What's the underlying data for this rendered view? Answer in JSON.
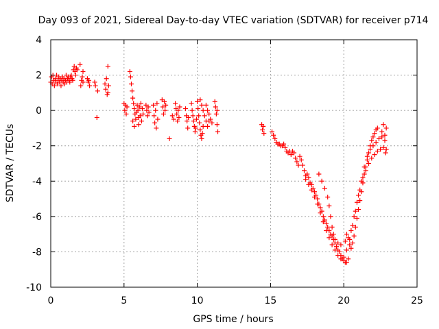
{
  "chart_data": {
    "type": "scatter",
    "title": "Day 093 of 2021, Sidereal Day-to-day VTEC variation (SDTVAR) for receiver p714",
    "xlabel": "GPS time / hours",
    "ylabel": "SDTVAR / TECUs",
    "xlim": [
      0,
      25
    ],
    "ylim": [
      -10,
      4
    ],
    "x_ticks": [
      0,
      5,
      10,
      15,
      20,
      25
    ],
    "y_ticks": [
      4,
      2,
      0,
      -2,
      -4,
      -6,
      -8,
      -10
    ],
    "x_tick_labels": [
      "0",
      "5",
      "10",
      "15",
      "20",
      "25"
    ],
    "y_tick_labels": [
      "4",
      "2",
      "0",
      "-2",
      "-4",
      "-6",
      "-8",
      "-10"
    ],
    "grid": true,
    "marker": "plus",
    "series_color": "#ff0000",
    "series": [
      {
        "name": "SDTVAR",
        "points": [
          [
            0.0,
            1.6
          ],
          [
            0.05,
            1.9
          ],
          [
            0.1,
            1.5
          ],
          [
            0.15,
            2.0
          ],
          [
            0.2,
            1.7
          ],
          [
            0.25,
            1.4
          ],
          [
            0.3,
            1.8
          ],
          [
            0.35,
            1.6
          ],
          [
            0.4,
            2.0
          ],
          [
            0.45,
            1.5
          ],
          [
            0.5,
            1.7
          ],
          [
            0.55,
            1.9
          ],
          [
            0.6,
            1.6
          ],
          [
            0.65,
            1.8
          ],
          [
            0.7,
            1.4
          ],
          [
            0.75,
            1.7
          ],
          [
            0.8,
            1.9
          ],
          [
            0.85,
            1.6
          ],
          [
            0.9,
            1.8
          ],
          [
            0.95,
            1.5
          ],
          [
            1.0,
            1.7
          ],
          [
            1.05,
            2.0
          ],
          [
            1.1,
            1.6
          ],
          [
            1.15,
            1.8
          ],
          [
            1.2,
            1.9
          ],
          [
            1.25,
            1.7
          ],
          [
            1.3,
            1.6
          ],
          [
            1.35,
            1.9
          ],
          [
            1.4,
            2.0
          ],
          [
            1.45,
            1.8
          ],
          [
            1.5,
            1.7
          ],
          [
            1.55,
            2.3
          ],
          [
            1.6,
            2.5
          ],
          [
            1.65,
            2.2
          ],
          [
            1.7,
            2.0
          ],
          [
            1.75,
            2.4
          ],
          [
            1.8,
            2.3
          ],
          [
            2.0,
            2.6
          ],
          [
            2.05,
            1.4
          ],
          [
            2.1,
            1.7
          ],
          [
            2.15,
            1.9
          ],
          [
            2.2,
            2.2
          ],
          [
            2.2,
            1.6
          ],
          [
            2.5,
            1.8
          ],
          [
            2.55,
            1.6
          ],
          [
            2.6,
            1.7
          ],
          [
            2.65,
            1.4
          ],
          [
            3.0,
            1.6
          ],
          [
            3.05,
            1.4
          ],
          [
            3.15,
            -0.4
          ],
          [
            3.2,
            1.1
          ],
          [
            3.7,
            1.5
          ],
          [
            3.75,
            1.2
          ],
          [
            3.8,
            1.8
          ],
          [
            3.85,
            0.9
          ],
          [
            3.9,
            2.5
          ],
          [
            3.9,
            1.0
          ],
          [
            3.95,
            1.4
          ],
          [
            5.0,
            0.4
          ],
          [
            5.05,
            0.0
          ],
          [
            5.1,
            0.3
          ],
          [
            5.15,
            -0.2
          ],
          [
            5.2,
            0.2
          ],
          [
            5.4,
            2.2
          ],
          [
            5.45,
            1.9
          ],
          [
            5.5,
            1.5
          ],
          [
            5.55,
            1.1
          ],
          [
            5.6,
            0.7
          ],
          [
            5.65,
            0.4
          ],
          [
            5.7,
            0.1
          ],
          [
            5.75,
            -0.2
          ],
          [
            5.8,
            -0.5
          ],
          [
            5.85,
            -0.1
          ],
          [
            5.9,
            0.3
          ],
          [
            5.95,
            0.0
          ],
          [
            6.0,
            -0.4
          ],
          [
            6.05,
            0.2
          ],
          [
            6.1,
            -0.3
          ],
          [
            6.15,
            0.4
          ],
          [
            6.2,
            -0.6
          ],
          [
            6.25,
            0.1
          ],
          [
            6.3,
            -0.2
          ],
          [
            5.6,
            -0.6
          ],
          [
            5.7,
            -0.9
          ],
          [
            6.0,
            -0.8
          ],
          [
            6.5,
            0.3
          ],
          [
            6.55,
            0.0
          ],
          [
            6.6,
            -0.3
          ],
          [
            6.65,
            0.2
          ],
          [
            6.7,
            -0.1
          ],
          [
            7.0,
            0.3
          ],
          [
            7.05,
            -0.3
          ],
          [
            7.1,
            -0.7
          ],
          [
            7.15,
            0.0
          ],
          [
            7.2,
            -1.0
          ],
          [
            7.25,
            0.4
          ],
          [
            7.3,
            -0.5
          ],
          [
            7.6,
            0.6
          ],
          [
            7.65,
            0.2
          ],
          [
            7.7,
            -0.2
          ],
          [
            7.75,
            0.5
          ],
          [
            7.8,
            0.0
          ],
          [
            7.85,
            0.3
          ],
          [
            8.1,
            -1.6
          ],
          [
            8.3,
            -0.3
          ],
          [
            8.4,
            -0.5
          ],
          [
            8.5,
            0.4
          ],
          [
            8.55,
            0.1
          ],
          [
            8.6,
            -0.2
          ],
          [
            8.65,
            -0.6
          ],
          [
            8.7,
            0.0
          ],
          [
            8.75,
            -0.4
          ],
          [
            8.8,
            0.2
          ],
          [
            9.2,
            0.1
          ],
          [
            9.25,
            -0.3
          ],
          [
            9.3,
            -0.6
          ],
          [
            9.35,
            -1.0
          ],
          [
            9.4,
            -0.4
          ],
          [
            9.6,
            0.4
          ],
          [
            9.65,
            0.0
          ],
          [
            9.7,
            -0.3
          ],
          [
            9.75,
            -0.6
          ],
          [
            9.8,
            -0.9
          ],
          [
            9.85,
            -1.2
          ],
          [
            9.9,
            -1.0
          ],
          [
            9.95,
            -0.5
          ],
          [
            10.0,
            0.5
          ],
          [
            10.05,
            0.1
          ],
          [
            10.1,
            -0.3
          ],
          [
            10.15,
            -0.7
          ],
          [
            10.2,
            -1.1
          ],
          [
            10.25,
            -1.4
          ],
          [
            10.3,
            -1.6
          ],
          [
            10.35,
            -1.3
          ],
          [
            10.4,
            -0.9
          ],
          [
            10.2,
            0.6
          ],
          [
            10.3,
            0.3
          ],
          [
            10.4,
            0.0
          ],
          [
            10.5,
            -0.3
          ],
          [
            10.6,
            -0.6
          ],
          [
            10.7,
            -0.9
          ],
          [
            10.8,
            -0.6
          ],
          [
            10.6,
            0.3
          ],
          [
            10.7,
            0.0
          ],
          [
            10.8,
            -0.2
          ],
          [
            10.9,
            -0.5
          ],
          [
            11.0,
            -0.7
          ],
          [
            11.2,
            0.5
          ],
          [
            11.25,
            0.2
          ],
          [
            11.3,
            -0.2
          ],
          [
            11.35,
            -0.8
          ],
          [
            11.4,
            -1.2
          ],
          [
            11.35,
            0.0
          ],
          [
            14.4,
            -0.8
          ],
          [
            14.45,
            -1.1
          ],
          [
            14.5,
            -0.9
          ],
          [
            14.55,
            -1.3
          ],
          [
            15.1,
            -1.2
          ],
          [
            15.2,
            -1.4
          ],
          [
            15.3,
            -1.6
          ],
          [
            15.4,
            -1.8
          ],
          [
            15.5,
            -1.9
          ],
          [
            15.6,
            -1.9
          ],
          [
            15.7,
            -2.0
          ],
          [
            15.8,
            -2.0
          ],
          [
            15.9,
            -1.9
          ],
          [
            16.0,
            -2.1
          ],
          [
            16.1,
            -2.3
          ],
          [
            16.2,
            -2.4
          ],
          [
            16.3,
            -2.3
          ],
          [
            16.4,
            -2.5
          ],
          [
            16.5,
            -2.3
          ],
          [
            16.6,
            -2.4
          ],
          [
            16.7,
            -2.7
          ],
          [
            16.8,
            -2.9
          ],
          [
            16.9,
            -3.1
          ],
          [
            17.0,
            -2.6
          ],
          [
            17.1,
            -2.8
          ],
          [
            17.2,
            -3.1
          ],
          [
            17.3,
            -3.4
          ],
          [
            17.4,
            -3.7
          ],
          [
            17.5,
            -3.6
          ],
          [
            17.6,
            -3.8
          ],
          [
            17.7,
            -4.1
          ],
          [
            17.8,
            -4.2
          ],
          [
            17.9,
            -4.4
          ],
          [
            18.0,
            -4.6
          ],
          [
            18.1,
            -4.8
          ],
          [
            18.2,
            -5.0
          ],
          [
            18.3,
            -5.3
          ],
          [
            18.4,
            -5.5
          ],
          [
            18.5,
            -5.7
          ],
          [
            18.6,
            -6.0
          ],
          [
            18.7,
            -6.2
          ],
          [
            18.8,
            -6.4
          ],
          [
            18.9,
            -6.6
          ],
          [
            19.0,
            -6.8
          ],
          [
            19.1,
            -7.0
          ],
          [
            19.2,
            -7.1
          ],
          [
            19.3,
            -7.3
          ],
          [
            19.4,
            -7.5
          ],
          [
            19.5,
            -7.7
          ],
          [
            19.6,
            -7.9
          ],
          [
            19.7,
            -8.0
          ],
          [
            19.8,
            -8.2
          ],
          [
            19.9,
            -8.4
          ],
          [
            20.0,
            -8.5
          ],
          [
            20.1,
            -8.6
          ],
          [
            20.2,
            -8.6
          ],
          [
            20.3,
            -8.4
          ],
          [
            17.4,
            -3.9
          ],
          [
            17.6,
            -4.2
          ],
          [
            17.8,
            -4.5
          ],
          [
            18.0,
            -4.9
          ],
          [
            18.2,
            -5.3
          ],
          [
            18.4,
            -5.8
          ],
          [
            18.6,
            -6.3
          ],
          [
            18.8,
            -6.8
          ],
          [
            19.0,
            -7.2
          ],
          [
            19.2,
            -7.6
          ],
          [
            19.4,
            -7.9
          ],
          [
            19.6,
            -8.2
          ],
          [
            19.8,
            -8.4
          ],
          [
            20.0,
            -8.3
          ],
          [
            18.3,
            -3.6
          ],
          [
            18.5,
            -4.0
          ],
          [
            18.7,
            -4.4
          ],
          [
            18.9,
            -4.9
          ],
          [
            19.0,
            -5.4
          ],
          [
            19.1,
            -6.0
          ],
          [
            19.2,
            -6.6
          ],
          [
            19.3,
            -7.0
          ],
          [
            19.4,
            -7.3
          ],
          [
            19.6,
            -7.5
          ],
          [
            19.8,
            -7.6
          ],
          [
            20.1,
            -7.4
          ],
          [
            20.2,
            -7.0
          ],
          [
            20.3,
            -7.2
          ],
          [
            20.4,
            -7.6
          ],
          [
            20.5,
            -7.8
          ],
          [
            20.6,
            -7.5
          ],
          [
            20.7,
            -7.1
          ],
          [
            20.8,
            -6.6
          ],
          [
            20.9,
            -6.1
          ],
          [
            21.0,
            -5.6
          ],
          [
            21.1,
            -5.1
          ],
          [
            21.2,
            -4.6
          ],
          [
            21.3,
            -4.1
          ],
          [
            21.4,
            -3.6
          ],
          [
            21.5,
            -3.2
          ],
          [
            21.6,
            -2.8
          ],
          [
            21.7,
            -2.4
          ],
          [
            21.8,
            -2.0
          ],
          [
            21.9,
            -1.7
          ],
          [
            22.0,
            -1.5
          ],
          [
            22.1,
            -1.3
          ],
          [
            22.2,
            -1.1
          ],
          [
            22.3,
            -1.0
          ],
          [
            20.2,
            -7.9
          ],
          [
            20.4,
            -7.3
          ],
          [
            20.6,
            -6.5
          ],
          [
            20.8,
            -5.7
          ],
          [
            21.0,
            -4.8
          ],
          [
            21.2,
            -4.0
          ],
          [
            21.4,
            -3.2
          ],
          [
            21.6,
            -2.6
          ],
          [
            21.8,
            -2.2
          ],
          [
            22.0,
            -2.0
          ],
          [
            22.2,
            -1.8
          ],
          [
            22.4,
            -1.6
          ],
          [
            22.6,
            -1.5
          ],
          [
            22.8,
            -1.4
          ],
          [
            20.5,
            -6.8
          ],
          [
            20.7,
            -6.0
          ],
          [
            20.9,
            -5.2
          ],
          [
            21.1,
            -4.5
          ],
          [
            21.3,
            -3.8
          ],
          [
            21.5,
            -3.4
          ],
          [
            21.7,
            -3.0
          ],
          [
            21.9,
            -2.7
          ],
          [
            22.1,
            -2.5
          ],
          [
            22.3,
            -2.3
          ],
          [
            22.5,
            -2.2
          ],
          [
            22.7,
            -2.1
          ],
          [
            22.9,
            -2.2
          ],
          [
            22.6,
            -1.2
          ],
          [
            22.7,
            -0.8
          ],
          [
            22.8,
            -1.7
          ],
          [
            22.85,
            -2.4
          ],
          [
            22.9,
            -1.0
          ]
        ]
      }
    ]
  }
}
